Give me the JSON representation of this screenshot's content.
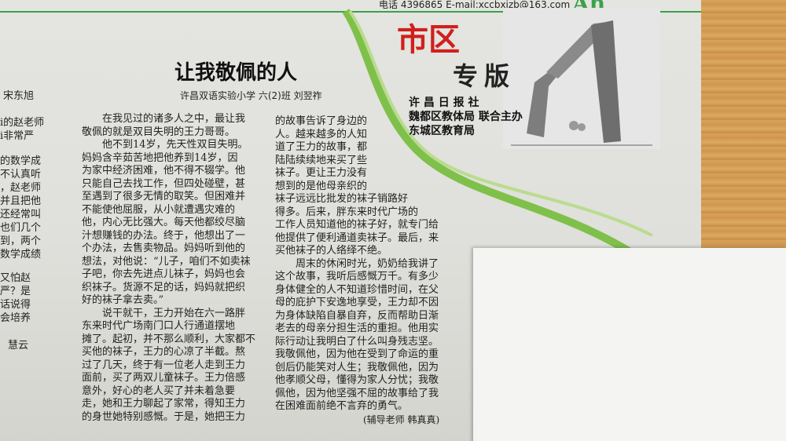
{
  "header": {
    "contact": "电话 4396865 E-mail:xccbxjzb@163.com"
  },
  "edition": {
    "title": "市区",
    "subtitle": "专版",
    "sponsors": [
      "许 昌 日 报 社",
      "魏都区教体局 联合主办",
      "东城区教育局"
    ]
  },
  "left_fragment": {
    "author": "宋东旭",
    "lines": [
      "i的赵老师",
      "i非常严",
      "的数学成",
      "不认真听",
      "，赵老师",
      "并且把他",
      "还经常叫",
      "也们几个",
      "到，两个",
      "数学成绩",
      "又怕赵",
      "严？是",
      "话说得",
      "会培养",
      "慧云"
    ]
  },
  "article": {
    "title": "让我敬佩的人",
    "byline": "许昌双语实验小学 六(2)班 刘翌祚",
    "col1": [
      "　　在我见过的诸多人之中，最让我",
      "敬佩的就是双目失明的王力哥哥。",
      "　　他不到14岁，先天性双目失明。",
      "妈妈含辛茹苦地把他养到14岁，因",
      "为家中经济困难，他不得不辍学。他",
      "只能自己去找工作，但四处碰壁，甚",
      "至遇到了很多无情的取笑。但困难并",
      "不能使他屈服，从小就遭遇灾难的",
      "他，内心无比强大。每天他都绞尽脑",
      "汁想赚钱的办法。终于，他想出了一",
      "个办法，去售卖物品。妈妈听到他的",
      "想法，对他说：“儿子，咱们不如卖袜",
      "子吧，你去先进点儿袜子，妈妈也会",
      "织袜子。货源不足的话，妈妈就把织",
      "好的袜子拿去卖。”",
      "　　说干就干，王力开始在六一路胖",
      "东来时代广场南门口人行通道摆地",
      "摊了。起初，并不那么顺利，大家都不",
      "买他的袜子，王力的心凉了半截。熬",
      "过了几天，终于有一位老人走到王力",
      "面前，买了两双儿童袜子。王力倍感",
      "意外，好心的老人买了并未着急要",
      "走，她和王力聊起了家常，得知王力",
      "的身世她特别感慨。于是，她把王力"
    ],
    "col2": [
      "的故事告诉了身边的",
      "人。越来越多的人知",
      "道了王力的故事，都",
      "陆陆续续地来买了些",
      "袜子。更让王力没有",
      "想到的是他母亲织的",
      "袜子远远比批发的袜子销路好",
      "得多。后来，胖东来时代广场的",
      "工作人员知道他的袜子好，就专门给",
      "他提供了便利通道卖袜子。最后，来",
      "买他袜子的人络绎不绝。",
      "　　周末的休闲时光，奶奶给我讲了",
      "这个故事，我听后感慨万千。有多少",
      "身体健全的人不知道珍惜时间，在父",
      "母的庇护下安逸地享受，王力却不因",
      "为身体缺陷自暴自弃，反而帮助日渐",
      "老去的母亲分担生活的重担。他用实",
      "际行动让我明白了什么叫身残志坚。",
      "我敬佩他，因为他在受到了命运的重",
      "创后仍能笑对人生；我敬佩他，因为",
      "他孝顺父母，懂得为家人分忧；我敬",
      "佩他，因为他坚强不屈的故事给了我",
      "在困难面前绝不言弃的勇气。"
    ],
    "advisor": "(辅导老师 韩真真)"
  },
  "colors": {
    "accent_green": "#3aa24a",
    "title_red": "#d0201c",
    "table_wood": "#cf9650"
  }
}
